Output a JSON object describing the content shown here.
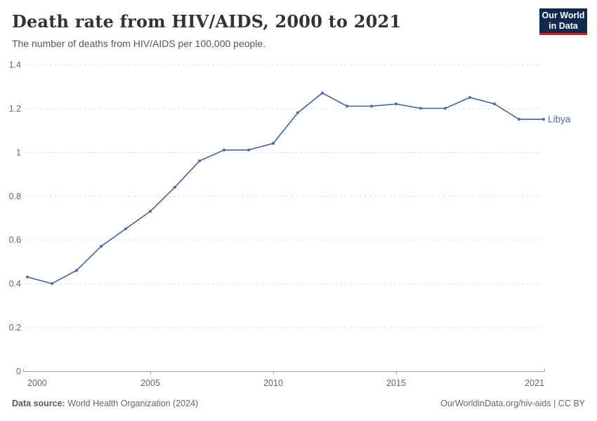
{
  "header": {
    "title": "Death rate from HIV/AIDS, 2000 to 2021",
    "subtitle": "The number of deaths from HIV/AIDS per 100,000 people.",
    "logo_line1": "Our World",
    "logo_line2": "in Data"
  },
  "chart_data": {
    "type": "line",
    "title": "Death rate from HIV/AIDS, 2000 to 2021",
    "xlabel": "",
    "ylabel": "",
    "xlim": [
      2000,
      2021
    ],
    "ylim": [
      0,
      1.4
    ],
    "x_ticks": [
      2000,
      2005,
      2010,
      2015,
      2021
    ],
    "y_ticks": [
      0,
      0.2,
      0.4,
      0.6,
      0.8,
      1,
      1.2,
      1.4
    ],
    "y_tick_labels": [
      "0",
      "0.2",
      "0.4",
      "0.6",
      "0.8",
      "1",
      "1.2",
      "1.4"
    ],
    "grid": "horizontal-dashed",
    "legend_position": "end-of-line-label",
    "x": [
      2000,
      2001,
      2002,
      2003,
      2004,
      2005,
      2006,
      2007,
      2008,
      2009,
      2010,
      2011,
      2012,
      2013,
      2014,
      2015,
      2016,
      2017,
      2018,
      2019,
      2020,
      2021
    ],
    "series": [
      {
        "name": "Libya",
        "color": "#4C6A9C",
        "values": [
          0.43,
          0.4,
          0.46,
          0.57,
          0.65,
          0.73,
          0.84,
          0.96,
          1.01,
          1.01,
          1.04,
          1.18,
          1.27,
          1.21,
          1.21,
          1.22,
          1.2,
          1.2,
          1.25,
          1.22,
          1.15,
          1.15
        ]
      }
    ]
  },
  "colors": {
    "line": "#4C6A9C",
    "grid": "#DCDCDC",
    "axis": "#A3A3A3",
    "tick_text": "#666666",
    "logo_bg": "#12294E",
    "logo_accent": "#C7251D"
  },
  "footer": {
    "data_source_label": "Data source:",
    "data_source_value": "World Health Organization (2024)",
    "credit": "OurWorldinData.org/hiv-aids | CC BY"
  }
}
